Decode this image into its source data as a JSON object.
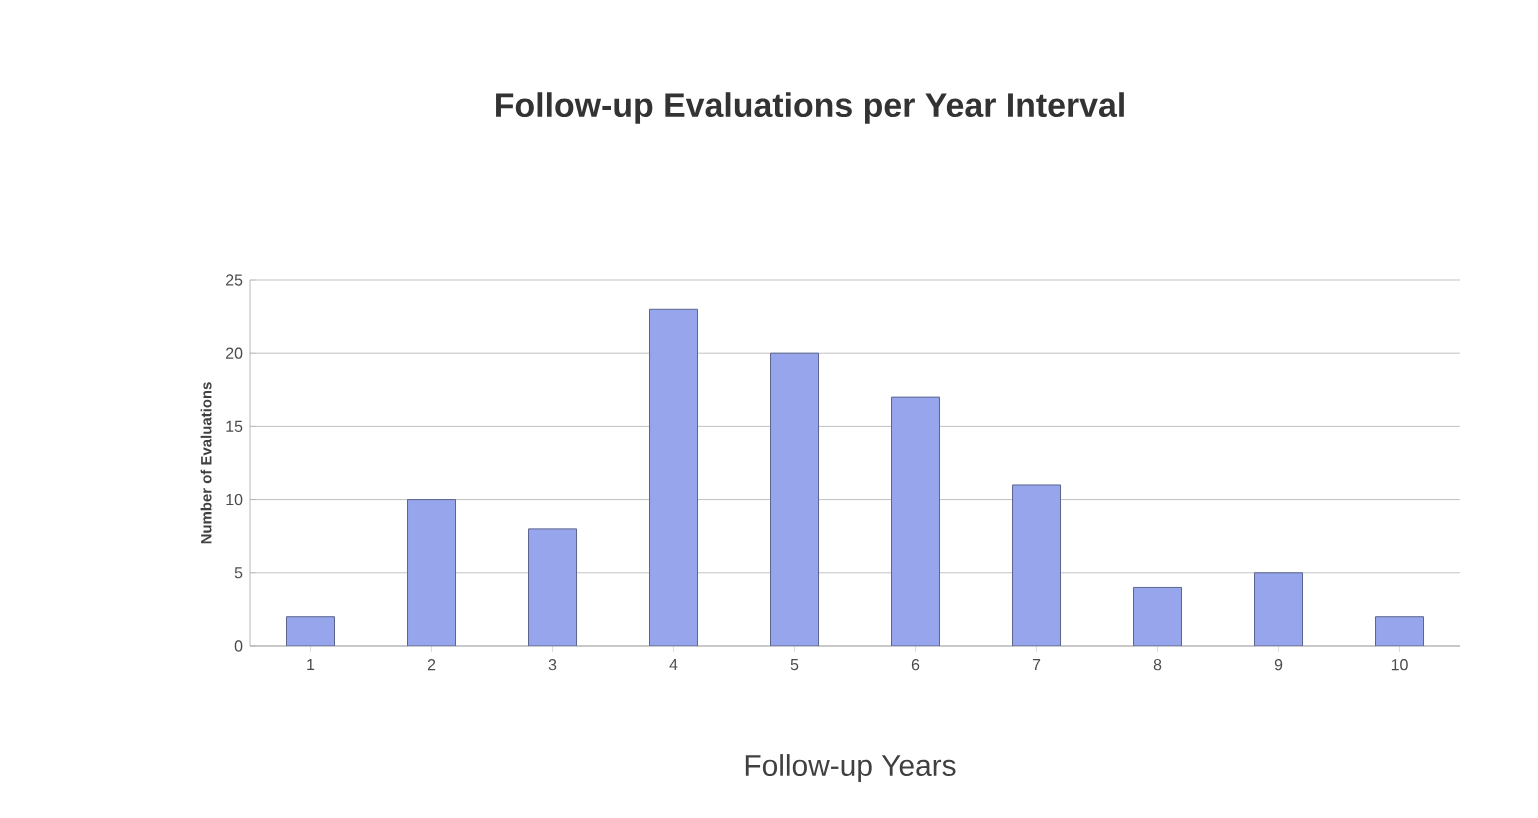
{
  "chart_data": {
    "type": "bar",
    "title": "Follow-up Evaluations per Year Interval",
    "xlabel": "Follow-up Years",
    "ylabel": "Number of Evaluations",
    "categories": [
      "1",
      "2",
      "3",
      "4",
      "5",
      "6",
      "7",
      "8",
      "9",
      "10"
    ],
    "values": [
      2,
      10,
      8,
      23,
      20,
      17,
      11,
      4,
      5,
      2
    ],
    "color": "#97a6ec",
    "ylim": [
      0,
      25
    ],
    "yticks": [
      0,
      5,
      10,
      15,
      20,
      25
    ],
    "grid": "y"
  }
}
